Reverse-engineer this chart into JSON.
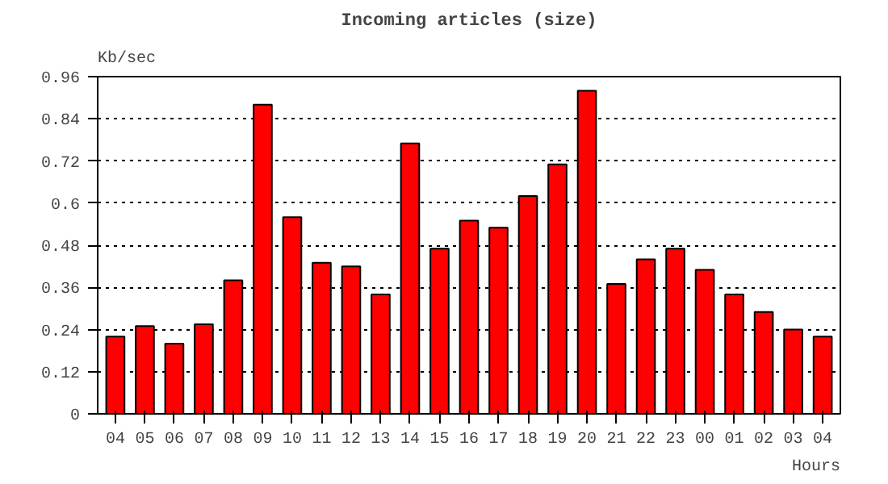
{
  "chart_data": {
    "type": "bar",
    "title": "Incoming articles (size)",
    "ylabel": "Kb/sec",
    "xlabel": "Hours",
    "categories": [
      "04",
      "05",
      "06",
      "07",
      "08",
      "09",
      "10",
      "11",
      "12",
      "13",
      "14",
      "15",
      "16",
      "17",
      "18",
      "19",
      "20",
      "21",
      "22",
      "23",
      "00",
      "01",
      "02",
      "03",
      "04"
    ],
    "values": [
      0.22,
      0.25,
      0.2,
      0.255,
      0.38,
      0.88,
      0.56,
      0.43,
      0.42,
      0.34,
      0.77,
      0.47,
      0.55,
      0.53,
      0.62,
      0.71,
      0.92,
      0.37,
      0.44,
      0.47,
      0.41,
      0.34,
      0.29,
      0.24,
      0.22
    ],
    "color": "#ff0000",
    "ylim": [
      0,
      0.96
    ],
    "yticks": [
      0,
      0.12,
      0.24,
      0.36,
      0.48,
      0.6,
      0.72,
      0.84,
      0.96
    ],
    "grid": "y"
  }
}
